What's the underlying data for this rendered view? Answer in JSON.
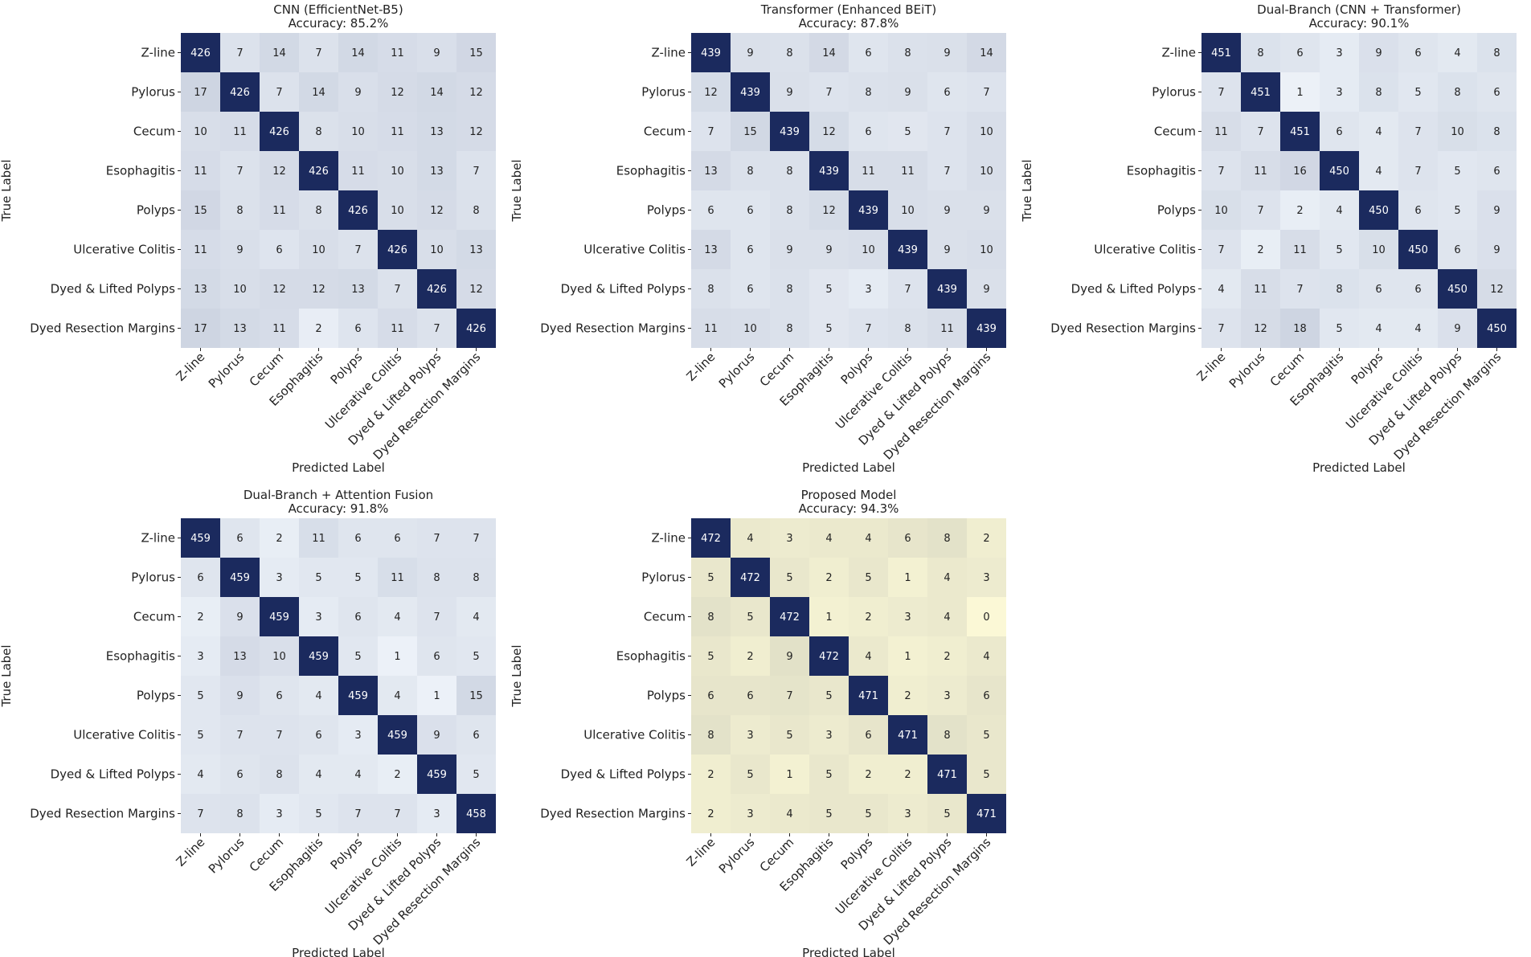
{
  "chart_data": [
    {
      "type": "heatmap",
      "title": "CNN (EfficientNet-B5)",
      "subtitle": "Accuracy: 85.2%",
      "xlabel": "Predicted Label",
      "ylabel": "True Label",
      "colormap": "blues",
      "categories": [
        "Z-line",
        "Pylorus",
        "Cecum",
        "Esophagitis",
        "Polyps",
        "Ulcerative Colitis",
        "Dyed & Lifted Polyps",
        "Dyed Resection Margins"
      ],
      "matrix": [
        [
          426,
          7,
          14,
          7,
          14,
          11,
          9,
          15
        ],
        [
          17,
          426,
          7,
          14,
          9,
          12,
          14,
          12
        ],
        [
          10,
          11,
          426,
          8,
          10,
          11,
          13,
          12
        ],
        [
          11,
          7,
          12,
          426,
          11,
          10,
          13,
          7
        ],
        [
          15,
          8,
          11,
          8,
          426,
          10,
          12,
          8
        ],
        [
          11,
          9,
          6,
          10,
          7,
          426,
          10,
          13
        ],
        [
          13,
          10,
          12,
          12,
          13,
          7,
          426,
          12
        ],
        [
          17,
          13,
          11,
          2,
          6,
          11,
          7,
          426
        ]
      ]
    },
    {
      "type": "heatmap",
      "title": "Transformer (Enhanced BEiT)",
      "subtitle": "Accuracy: 87.8%",
      "xlabel": "Predicted Label",
      "ylabel": "True Label",
      "colormap": "blues",
      "categories": [
        "Z-line",
        "Pylorus",
        "Cecum",
        "Esophagitis",
        "Polyps",
        "Ulcerative Colitis",
        "Dyed & Lifted Polyps",
        "Dyed Resection Margins"
      ],
      "matrix": [
        [
          439,
          9,
          8,
          14,
          6,
          8,
          9,
          14
        ],
        [
          12,
          439,
          9,
          7,
          8,
          9,
          6,
          7
        ],
        [
          7,
          15,
          439,
          12,
          6,
          5,
          7,
          10
        ],
        [
          13,
          8,
          8,
          439,
          11,
          11,
          7,
          10
        ],
        [
          6,
          6,
          8,
          12,
          439,
          10,
          9,
          9
        ],
        [
          13,
          6,
          9,
          9,
          10,
          439,
          9,
          10
        ],
        [
          8,
          6,
          8,
          5,
          3,
          7,
          439,
          9
        ],
        [
          11,
          10,
          8,
          5,
          7,
          8,
          11,
          439
        ]
      ]
    },
    {
      "type": "heatmap",
      "title": "Dual-Branch (CNN + Transformer)",
      "subtitle": "Accuracy: 90.1%",
      "xlabel": "Predicted Label",
      "ylabel": "True Label",
      "colormap": "blues",
      "categories": [
        "Z-line",
        "Pylorus",
        "Cecum",
        "Esophagitis",
        "Polyps",
        "Ulcerative Colitis",
        "Dyed & Lifted Polyps",
        "Dyed Resection Margins"
      ],
      "matrix": [
        [
          451,
          8,
          6,
          3,
          9,
          6,
          4,
          8
        ],
        [
          7,
          451,
          1,
          3,
          8,
          5,
          8,
          6
        ],
        [
          11,
          7,
          451,
          6,
          4,
          7,
          10,
          8
        ],
        [
          7,
          11,
          16,
          450,
          4,
          7,
          5,
          6
        ],
        [
          10,
          7,
          2,
          4,
          450,
          6,
          5,
          9
        ],
        [
          7,
          2,
          11,
          5,
          10,
          450,
          6,
          9
        ],
        [
          4,
          11,
          7,
          8,
          6,
          6,
          450,
          12
        ],
        [
          7,
          12,
          18,
          5,
          4,
          4,
          9,
          450
        ]
      ]
    },
    {
      "type": "heatmap",
      "title": "Dual-Branch + Attention Fusion",
      "subtitle": "Accuracy: 91.8%",
      "xlabel": "Predicted Label",
      "ylabel": "True Label",
      "colormap": "blues",
      "categories": [
        "Z-line",
        "Pylorus",
        "Cecum",
        "Esophagitis",
        "Polyps",
        "Ulcerative Colitis",
        "Dyed & Lifted Polyps",
        "Dyed Resection Margins"
      ],
      "matrix": [
        [
          459,
          6,
          2,
          11,
          6,
          6,
          7,
          7
        ],
        [
          6,
          459,
          3,
          5,
          5,
          11,
          8,
          8
        ],
        [
          2,
          9,
          459,
          3,
          6,
          4,
          7,
          4
        ],
        [
          3,
          13,
          10,
          459,
          5,
          1,
          6,
          5
        ],
        [
          5,
          9,
          6,
          4,
          459,
          4,
          1,
          15
        ],
        [
          5,
          7,
          7,
          6,
          3,
          459,
          9,
          6
        ],
        [
          4,
          6,
          8,
          4,
          4,
          2,
          459,
          5
        ],
        [
          7,
          8,
          3,
          5,
          7,
          7,
          3,
          458
        ]
      ]
    },
    {
      "type": "heatmap",
      "title": "Proposed Model",
      "subtitle": "Accuracy: 94.3%",
      "xlabel": "Predicted Label",
      "ylabel": "True Label",
      "colormap": "yellow-blue",
      "categories": [
        "Z-line",
        "Pylorus",
        "Cecum",
        "Esophagitis",
        "Polyps",
        "Ulcerative Colitis",
        "Dyed & Lifted Polyps",
        "Dyed Resection Margins"
      ],
      "matrix": [
        [
          472,
          4,
          3,
          4,
          4,
          6,
          8,
          2
        ],
        [
          5,
          472,
          5,
          2,
          5,
          1,
          4,
          3
        ],
        [
          8,
          5,
          472,
          1,
          2,
          3,
          4,
          0
        ],
        [
          5,
          2,
          9,
          472,
          4,
          1,
          2,
          4
        ],
        [
          6,
          6,
          7,
          5,
          471,
          2,
          3,
          6
        ],
        [
          8,
          3,
          5,
          3,
          6,
          471,
          8,
          5
        ],
        [
          2,
          5,
          1,
          5,
          2,
          2,
          471,
          5
        ],
        [
          2,
          3,
          4,
          5,
          5,
          3,
          5,
          471
        ]
      ]
    }
  ],
  "colors": {
    "dark": "#1b2a5e",
    "blue_low": "#f3f8fd",
    "yellow_low": "#fbf8d6",
    "text_dark": "#222222",
    "text_light": "#ffffff"
  }
}
